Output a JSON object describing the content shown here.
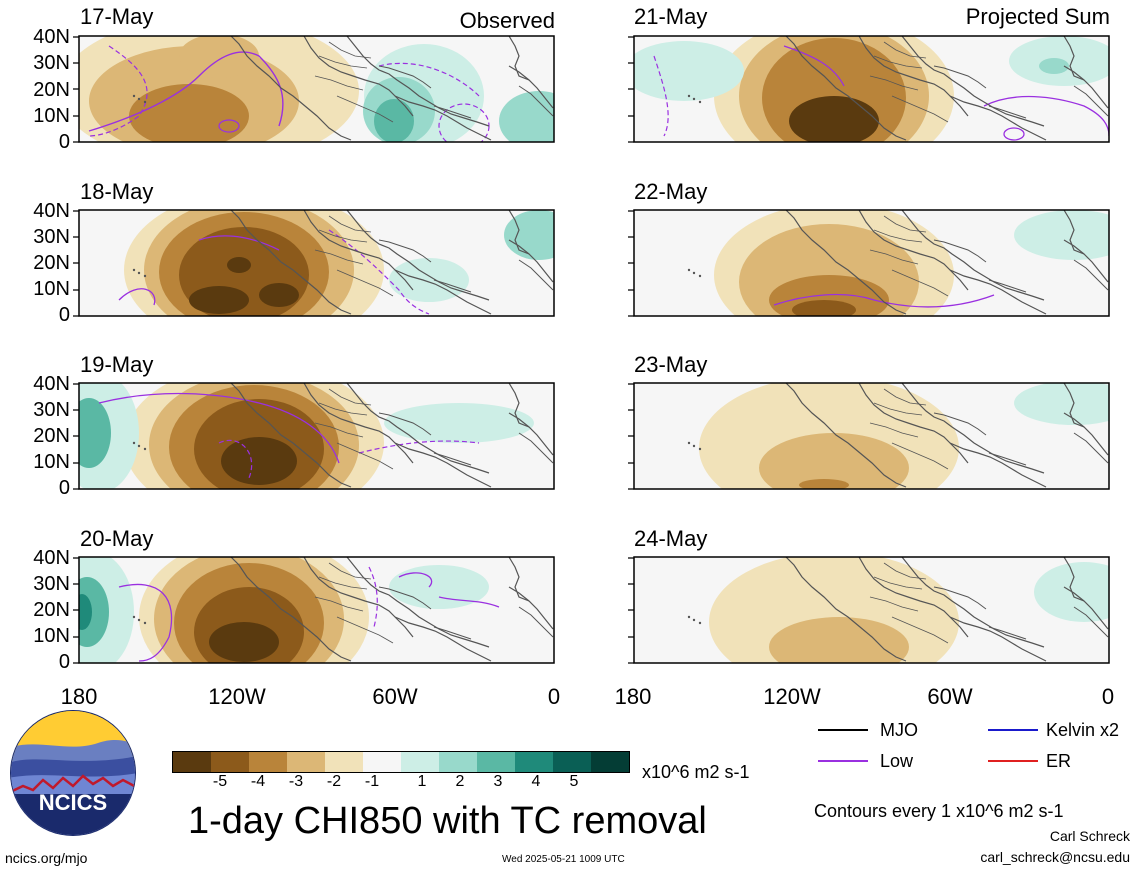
{
  "columns": {
    "left_title": "Observed",
    "right_title": "Projected Sum"
  },
  "panels": {
    "left": [
      "17-May",
      "18-May",
      "19-May",
      "20-May"
    ],
    "right": [
      "21-May",
      "22-May",
      "23-May",
      "24-May"
    ]
  },
  "axes": {
    "y_ticks": [
      "40N",
      "30N",
      "20N",
      "10N",
      "0"
    ],
    "x_ticks": [
      "180",
      "120W",
      "60W",
      "0"
    ]
  },
  "colorbar": {
    "colors": [
      "#5a3a0f",
      "#8c5a1b",
      "#b9843a",
      "#dcb776",
      "#f1e2b9",
      "#f6f6f6",
      "#cdeee6",
      "#98d9cb",
      "#5ab8a4",
      "#1f8a7a",
      "#0a5f55",
      "#043d35"
    ],
    "labels": [
      "-5",
      "-4",
      "-3",
      "-2",
      "-1",
      "1",
      "2",
      "3",
      "4",
      "5"
    ],
    "units": "x10^6 m2 s-1"
  },
  "title": "1-day CHI850 with TC removal",
  "legend": {
    "items": [
      {
        "label": "MJO",
        "color": "#000000"
      },
      {
        "label": "Kelvin x2",
        "color": "#1a1acc"
      },
      {
        "label": "Low",
        "color": "#9a30e0"
      },
      {
        "label": "ER",
        "color": "#e02020"
      }
    ],
    "contour_note": "Contours every 1 x10^6 m2 s-1"
  },
  "footer": {
    "logo_text": "NCICS",
    "url": "ncics.org/mjo",
    "timestamp": "Wed 2025-05-21 1009 UTC",
    "author": "Carl Schreck",
    "email": "carl_schreck@ncsu.edu"
  }
}
